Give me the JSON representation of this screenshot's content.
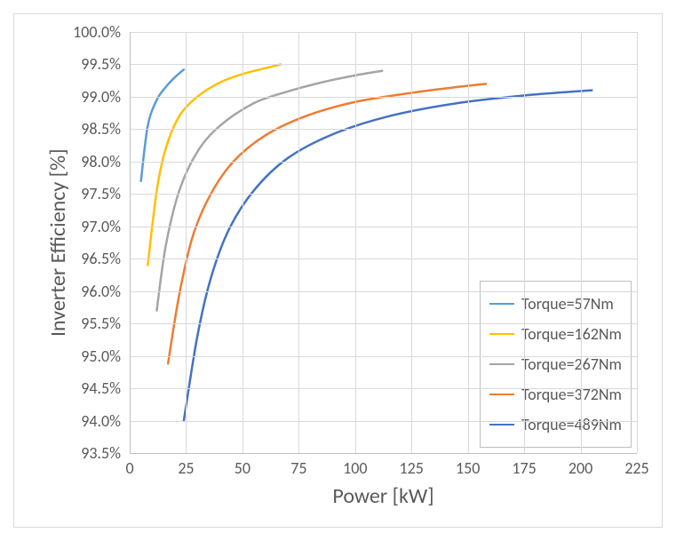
{
  "chart": {
    "type": "line",
    "background_color": "#ffffff",
    "border_color": "#d9d9d9",
    "grid_color": "#d9d9d9",
    "axis_color": "#bfbfbf",
    "text_color": "#595959",
    "tick_fontsize": 18,
    "axis_title_fontsize": 24,
    "line_width": 2.5,
    "x_axis": {
      "title": "Power [kW]",
      "min": 0,
      "max": 225,
      "tick_step": 25,
      "ticks": [
        0,
        25,
        50,
        75,
        100,
        125,
        150,
        175,
        200,
        225
      ]
    },
    "y_axis": {
      "title": "Inverter Efficiency [%]",
      "min": 93.5,
      "max": 100.0,
      "tick_step": 0.5,
      "ticks": [
        "93.5%",
        "94.0%",
        "94.5%",
        "95.0%",
        "95.5%",
        "96.0%",
        "96.5%",
        "97.0%",
        "97.5%",
        "98.0%",
        "98.5%",
        "99.0%",
        "99.5%",
        "100.0%"
      ],
      "tick_values": [
        93.5,
        94.0,
        94.5,
        95.0,
        95.5,
        96.0,
        96.5,
        97.0,
        97.5,
        98.0,
        98.5,
        99.0,
        99.5,
        100.0
      ]
    },
    "legend": {
      "position": "inside-bottom-right"
    },
    "series": [
      {
        "label": "Torque=57Nm",
        "color": "#5b9bd5",
        "points": [
          [
            5,
            97.7
          ],
          [
            8,
            98.55
          ],
          [
            12,
            98.95
          ],
          [
            16,
            99.15
          ],
          [
            20,
            99.3
          ],
          [
            24,
            99.42
          ]
        ]
      },
      {
        "label": "Torque=162Nm",
        "color": "#ffc000",
        "points": [
          [
            8,
            96.4
          ],
          [
            12,
            97.55
          ],
          [
            16,
            98.2
          ],
          [
            22,
            98.7
          ],
          [
            30,
            99.0
          ],
          [
            40,
            99.22
          ],
          [
            50,
            99.35
          ],
          [
            60,
            99.44
          ],
          [
            67,
            99.5
          ]
        ]
      },
      {
        "label": "Torque=267Nm",
        "color": "#a5a5a5",
        "points": [
          [
            12,
            95.7
          ],
          [
            16,
            96.7
          ],
          [
            22,
            97.55
          ],
          [
            30,
            98.15
          ],
          [
            40,
            98.55
          ],
          [
            55,
            98.9
          ],
          [
            70,
            99.08
          ],
          [
            85,
            99.22
          ],
          [
            100,
            99.33
          ],
          [
            112,
            99.4
          ]
        ]
      },
      {
        "label": "Torque=372Nm",
        "color": "#ed7d31",
        "points": [
          [
            17,
            94.88
          ],
          [
            22,
            95.95
          ],
          [
            28,
            96.85
          ],
          [
            36,
            97.5
          ],
          [
            46,
            98.0
          ],
          [
            60,
            98.4
          ],
          [
            78,
            98.7
          ],
          [
            100,
            98.92
          ],
          [
            125,
            99.06
          ],
          [
            145,
            99.15
          ],
          [
            158,
            99.2
          ]
        ]
      },
      {
        "label": "Torque=489Nm",
        "color": "#4472c4",
        "points": [
          [
            24,
            94.0
          ],
          [
            30,
            95.3
          ],
          [
            36,
            96.2
          ],
          [
            44,
            96.95
          ],
          [
            55,
            97.55
          ],
          [
            70,
            98.05
          ],
          [
            90,
            98.42
          ],
          [
            115,
            98.7
          ],
          [
            145,
            98.9
          ],
          [
            175,
            99.02
          ],
          [
            205,
            99.1
          ]
        ]
      }
    ]
  }
}
